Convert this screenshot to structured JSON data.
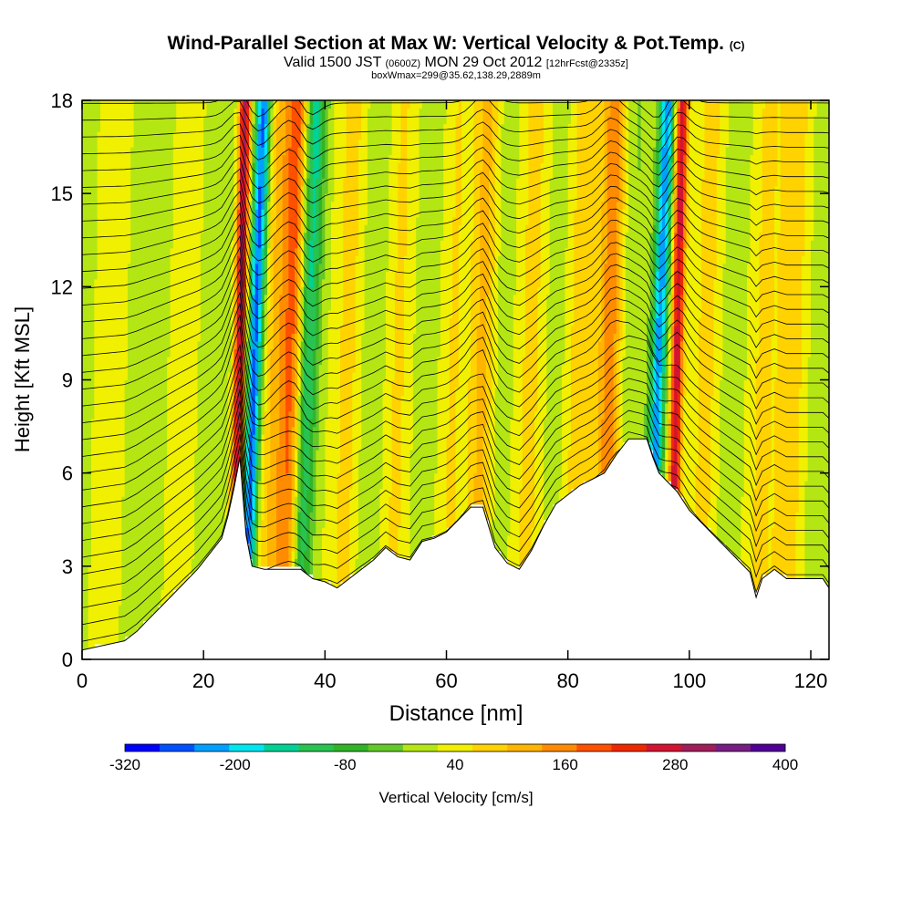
{
  "titles": {
    "line1_main": "Wind-Parallel Section at Max W: Vertical Velocity & Pot.Temp.",
    "line1_tag": "(C)",
    "line2_a": "Valid 1500 JST",
    "line2_b": "(0600Z)",
    "line2_c": "MON 29 Oct 2012",
    "line2_d": "[12hrFcst@2335z]",
    "line3": "boxWmax=299@35.62,138.29,2889m"
  },
  "colors": {
    "background": "#ffffff",
    "palette": [
      "#0000ff",
      "#0050ff",
      "#00a0ff",
      "#00e6f0",
      "#00d296",
      "#28c350",
      "#32b428",
      "#64c828",
      "#b4e614",
      "#f0f000",
      "#ffd200",
      "#ffb400",
      "#ff8c00",
      "#ff5000",
      "#f02800",
      "#d21432",
      "#a01e5a",
      "#781e82",
      "#500096"
    ]
  },
  "chart_data": {
    "type": "heatmap",
    "title": "Wind-Parallel Section at Max W: Vertical Velocity & Pot.Temp.",
    "xlabel": "Distance [nm]",
    "ylabel": "Height [Kft MSL]",
    "xlim": [
      0,
      123
    ],
    "ylim": [
      0,
      18
    ],
    "x_ticks": [
      0,
      20,
      40,
      60,
      80,
      100,
      120
    ],
    "y_ticks": [
      0,
      3,
      6,
      9,
      12,
      15,
      18
    ],
    "colorbar": {
      "label": "Vertical Velocity [cm/s]",
      "min": -320,
      "max": 400,
      "step": 40,
      "tick_labels": [
        -320,
        -200,
        -80,
        40,
        160,
        280,
        400
      ]
    },
    "terrain_kft": {
      "x": [
        0,
        7,
        9,
        11,
        13,
        15,
        17,
        19,
        21,
        23,
        24,
        25,
        26,
        26.5,
        27,
        28,
        30,
        36,
        38,
        40,
        42,
        48,
        50,
        52,
        54,
        56,
        58,
        60,
        62,
        64,
        66,
        68,
        70,
        72,
        74,
        76,
        78,
        80,
        82,
        84,
        86,
        88,
        90,
        93,
        94,
        95,
        96,
        98,
        100,
        102,
        104,
        106,
        108,
        110,
        111,
        112,
        114,
        116,
        118,
        120,
        122,
        123
      ],
      "height": [
        0.3,
        0.6,
        0.9,
        1.3,
        1.7,
        2.1,
        2.5,
        2.9,
        3.4,
        3.9,
        4.6,
        5.5,
        6.5,
        5.2,
        4.0,
        3.0,
        2.9,
        2.9,
        2.6,
        2.5,
        2.3,
        3.2,
        3.6,
        3.3,
        3.2,
        3.8,
        3.9,
        4.1,
        4.5,
        4.9,
        4.9,
        3.6,
        3.1,
        2.9,
        3.5,
        4.3,
        5.0,
        5.3,
        5.6,
        5.8,
        6.0,
        6.6,
        7.1,
        7.1,
        6.5,
        6.0,
        5.8,
        5.4,
        4.8,
        4.4,
        4.0,
        3.6,
        3.2,
        2.8,
        2.0,
        2.6,
        2.9,
        2.6,
        2.6,
        2.6,
        2.6,
        2.3
      ]
    },
    "updraft_cores": [
      {
        "x": 26,
        "peak_cm_s": 299
      },
      {
        "x": 35,
        "peak_cm_s": 180
      },
      {
        "x": 66,
        "peak_cm_s": 100
      },
      {
        "x": 87,
        "peak_cm_s": 160
      },
      {
        "x": 98,
        "peak_cm_s": 280
      }
    ],
    "downdraft_cores": [
      {
        "x": 28.5,
        "peak_cm_s": -300
      },
      {
        "x": 37,
        "peak_cm_s": -200
      },
      {
        "x": 95,
        "peak_cm_s": -260
      }
    ],
    "contour_field": "Potential temperature (C)"
  }
}
